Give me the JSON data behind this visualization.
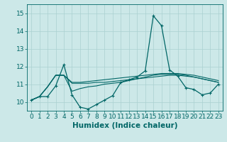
{
  "xlabel": "Humidex (Indice chaleur)",
  "background_color": "#cce8e8",
  "line_color": "#006666",
  "xlim": [
    -0.5,
    23.5
  ],
  "ylim": [
    9.5,
    15.5
  ],
  "yticks": [
    10,
    11,
    12,
    13,
    14,
    15
  ],
  "xticks": [
    0,
    1,
    2,
    3,
    4,
    5,
    6,
    7,
    8,
    9,
    10,
    11,
    12,
    13,
    14,
    15,
    16,
    17,
    18,
    19,
    20,
    21,
    22,
    23
  ],
  "series_main": [
    10.1,
    10.3,
    10.3,
    10.9,
    12.1,
    10.4,
    9.7,
    9.6,
    9.85,
    10.1,
    10.35,
    11.1,
    11.25,
    11.4,
    11.75,
    14.85,
    14.3,
    11.8,
    11.45,
    10.8,
    10.7,
    10.4,
    10.5,
    11.0
  ],
  "series_smooth": [
    [
      10.1,
      10.3,
      10.85,
      11.5,
      11.5,
      11.05,
      11.05,
      11.05,
      11.1,
      11.1,
      11.15,
      11.2,
      11.25,
      11.3,
      11.35,
      11.4,
      11.45,
      11.5,
      11.5,
      11.45,
      11.4,
      11.3,
      11.2,
      11.1
    ],
    [
      10.1,
      10.3,
      10.85,
      11.5,
      11.5,
      11.1,
      11.1,
      11.15,
      11.2,
      11.25,
      11.3,
      11.35,
      11.4,
      11.45,
      11.5,
      11.55,
      11.6,
      11.6,
      11.6,
      11.55,
      11.5,
      11.4,
      11.3,
      11.2
    ],
    [
      10.1,
      10.3,
      10.85,
      11.5,
      11.5,
      10.6,
      10.75,
      10.85,
      10.9,
      11.0,
      11.05,
      11.1,
      11.2,
      11.3,
      11.4,
      11.5,
      11.55,
      11.55,
      11.55,
      11.5,
      11.4,
      11.3,
      11.2,
      11.1
    ]
  ],
  "grid_color": "#aad0d0",
  "tick_fontsize": 6.5,
  "xlabel_fontsize": 7.5,
  "marker": "+",
  "markersize": 3.5,
  "linewidth_main": 0.9,
  "linewidth_smooth": 0.8
}
